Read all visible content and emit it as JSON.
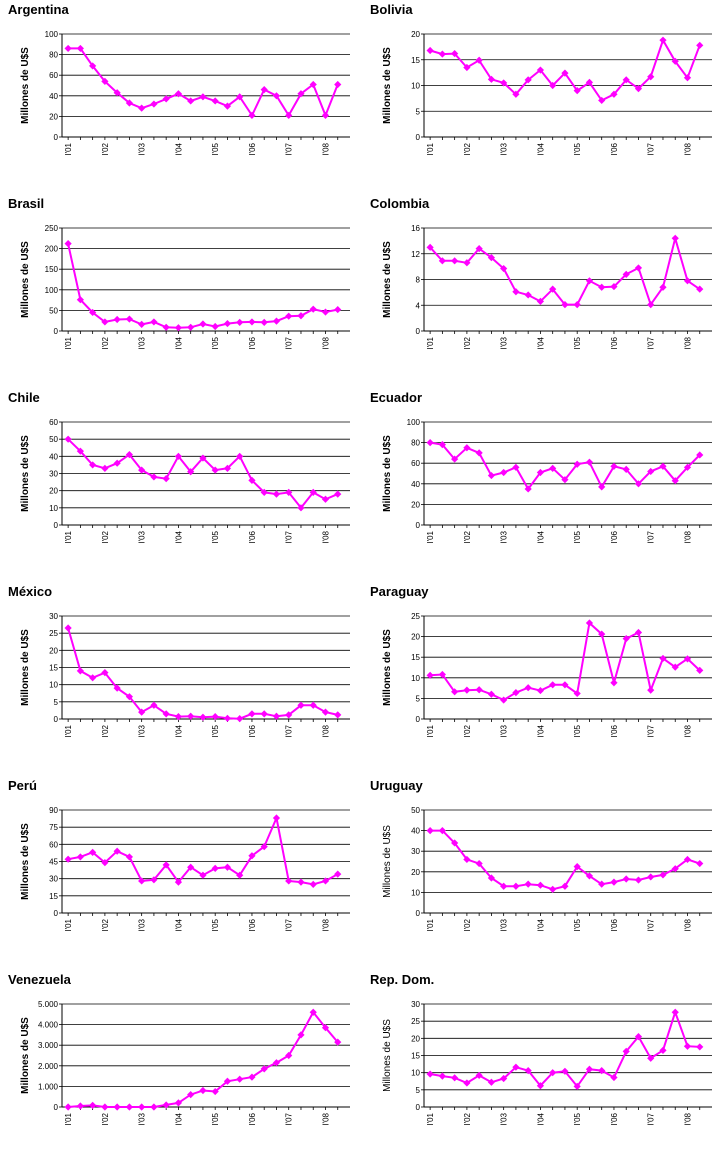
{
  "chart_data": [
    {
      "type": "line",
      "title": "Argentina",
      "ylabel": "Millones de U$S",
      "ylim": [
        0,
        100
      ],
      "yticks": [
        "0",
        "20",
        "40",
        "60",
        "80",
        "100"
      ],
      "xticks": [
        "I'01",
        "I'02",
        "I'03",
        "I'04",
        "I'05",
        "I'06",
        "I'07",
        "I'08"
      ],
      "color": "#ff00ff",
      "values": [
        86,
        86,
        69,
        54,
        43,
        33,
        28,
        32,
        37,
        42,
        35,
        39,
        35,
        30,
        39,
        21,
        46,
        40,
        21,
        42,
        51,
        21,
        51
      ]
    },
    {
      "type": "line",
      "title": "Bolivia",
      "ylabel": "Millones de U$S",
      "ylim": [
        0,
        20
      ],
      "yticks": [
        "0",
        "5",
        "10",
        "15",
        "20"
      ],
      "xticks": [
        "I'01",
        "I'02",
        "I'03",
        "I'04",
        "I'05",
        "I'06",
        "I'07",
        "I'08"
      ],
      "color": "#ff00ff",
      "values": [
        16.8,
        16.1,
        16.2,
        13.5,
        14.9,
        11.2,
        10.5,
        8.3,
        11.1,
        13,
        10,
        12.4,
        9,
        10.6,
        7.1,
        8.3,
        11.1,
        9.4,
        11.7,
        18.8,
        14.7,
        11.5,
        17.8
      ]
    },
    {
      "type": "line",
      "title": "Brasil",
      "ylabel": "Millones de U$S",
      "ylim": [
        0,
        250
      ],
      "yticks": [
        "0",
        "50",
        "100",
        "150",
        "200",
        "250"
      ],
      "xticks": [
        "I'01",
        "I'02",
        "I'03",
        "I'04",
        "I'05",
        "I'06",
        "I'07",
        "I'08"
      ],
      "color": "#ff00ff",
      "values": [
        212,
        76,
        45,
        22,
        28,
        29,
        16,
        22,
        9,
        8,
        9,
        17,
        11,
        18,
        21,
        22,
        21,
        24,
        36,
        37,
        53,
        46,
        52
      ]
    },
    {
      "type": "line",
      "title": "Colombia",
      "ylabel": "Millones de U$S",
      "ylim": [
        0,
        16
      ],
      "yticks": [
        "0",
        "4",
        "8",
        "12",
        "16"
      ],
      "xticks": [
        "I'01",
        "I'02",
        "I'03",
        "I'04",
        "I'05",
        "I'06",
        "I'07",
        "I'08"
      ],
      "color": "#ff00ff",
      "values": [
        13,
        10.9,
        10.9,
        10.6,
        12.8,
        11.4,
        9.7,
        6.1,
        5.6,
        4.6,
        6.5,
        4.1,
        4.1,
        7.8,
        6.8,
        6.9,
        8.8,
        9.8,
        4.1,
        6.8,
        14.4,
        7.8,
        6.5
      ]
    },
    {
      "type": "line",
      "title": "Chile",
      "ylabel": "Millones de U$S",
      "ylim": [
        0,
        60
      ],
      "yticks": [
        "0",
        "10",
        "20",
        "30",
        "40",
        "50",
        "60"
      ],
      "xticks": [
        "I'01",
        "I'02",
        "I'03",
        "I'04",
        "I'05",
        "I'06",
        "I'07",
        "I'08"
      ],
      "color": "#ff00ff",
      "values": [
        50,
        43,
        35,
        33,
        36,
        41,
        32,
        28,
        27,
        40,
        31,
        39,
        32,
        33,
        40,
        26,
        19,
        18,
        19,
        10,
        19,
        15,
        18
      ]
    },
    {
      "type": "line",
      "title": "Ecuador",
      "ylabel": "Millones de U$S",
      "ylim": [
        0,
        100
      ],
      "yticks": [
        "0",
        "20",
        "40",
        "60",
        "80",
        "100"
      ],
      "xticks": [
        "I'01",
        "I'02",
        "I'03",
        "I'04",
        "I'05",
        "I'06",
        "I'07",
        "I'08"
      ],
      "color": "#ff00ff",
      "values": [
        80,
        78,
        64,
        75,
        70,
        48,
        51,
        56,
        35,
        51,
        55,
        44,
        59,
        61,
        37,
        57,
        54,
        40,
        52,
        57,
        43,
        56,
        68
      ]
    },
    {
      "type": "line",
      "title": "México",
      "ylabel": "Millones de U$S",
      "ylim": [
        0,
        30
      ],
      "yticks": [
        "0",
        "5",
        "10",
        "15",
        "20",
        "25",
        "30"
      ],
      "xticks": [
        "I'01",
        "I'02",
        "I'03",
        "I'04",
        "I'05",
        "I'06",
        "I'07",
        "I'08"
      ],
      "color": "#ff00ff",
      "values": [
        26.5,
        14,
        12,
        13.5,
        9,
        6.5,
        2,
        4,
        1.5,
        0.7,
        0.8,
        0.5,
        0.7,
        0.2,
        0.1,
        1.5,
        1.5,
        0.8,
        1.2,
        4,
        4,
        2,
        1.2
      ]
    },
    {
      "type": "line",
      "title": "Paraguay",
      "ylabel": "Millones de U$S",
      "ylim": [
        0,
        25
      ],
      "yticks": [
        "0",
        "5",
        "10",
        "15",
        "20",
        "25"
      ],
      "xticks": [
        "I'01",
        "I'02",
        "I'03",
        "I'04",
        "I'05",
        "I'06",
        "I'07",
        "I'08"
      ],
      "color": "#ff00ff",
      "values": [
        10.6,
        10.8,
        6.6,
        7,
        7.1,
        6,
        4.6,
        6.4,
        7.6,
        6.9,
        8.3,
        8.3,
        6.2,
        23.3,
        20.6,
        8.8,
        19.5,
        21,
        7,
        14.7,
        12.6,
        14.6,
        11.8
      ]
    },
    {
      "type": "line",
      "title": "Perú",
      "ylabel": "Millones de U$S",
      "ylim": [
        0,
        90
      ],
      "yticks": [
        "0",
        "15",
        "30",
        "45",
        "60",
        "75",
        "90"
      ],
      "xticks": [
        "I'01",
        "I'02",
        "I'03",
        "I'04",
        "I'05",
        "I'06",
        "I'07",
        "I'08"
      ],
      "color": "#ff00ff",
      "values": [
        47,
        49,
        53,
        44,
        54,
        49,
        28,
        29,
        42,
        27,
        40,
        33,
        39,
        40,
        33,
        50,
        58,
        83,
        28,
        27,
        25,
        28,
        34
      ]
    },
    {
      "type": "line",
      "title": "Uruguay",
      "ylabel": "Millones de U$S",
      "ylim": [
        0,
        50
      ],
      "yticks": [
        "0",
        "10",
        "20",
        "30",
        "40",
        "50"
      ],
      "xticks": [
        "I'01",
        "I'02",
        "I'03",
        "I'04",
        "I'05",
        "I'06",
        "I'07",
        "I'08"
      ],
      "color": "#ff00ff",
      "values": [
        40,
        40,
        34,
        26,
        24,
        17,
        13,
        13,
        14,
        13.5,
        11.5,
        13,
        22.5,
        18,
        14,
        15,
        16.5,
        16,
        17.5,
        18.5,
        21.5,
        26,
        24
      ]
    },
    {
      "type": "line",
      "title": "Venezuela",
      "ylabel": "Millones de U$S",
      "ylim": [
        0,
        5000
      ],
      "yticks": [
        "0",
        "1.000",
        "2.000",
        "3.000",
        "4.000",
        "5.000"
      ],
      "xticks": [
        "I'01",
        "I'02",
        "I'03",
        "I'04",
        "I'05",
        "I'06",
        "I'07",
        "I'08"
      ],
      "color": "#ff00ff",
      "values": [
        0,
        50,
        80,
        0,
        0,
        0,
        0,
        0,
        100,
        200,
        600,
        800,
        750,
        1250,
        1350,
        1450,
        1850,
        2150,
        2500,
        3500,
        4600,
        3850,
        3150
      ]
    },
    {
      "type": "line",
      "title": "Rep. Dom.",
      "ylabel": "Millones de U$S",
      "ylim": [
        0,
        30
      ],
      "yticks": [
        "0",
        "5",
        "10",
        "15",
        "20",
        "25",
        "30"
      ],
      "xticks": [
        "I'01",
        "I'02",
        "I'03",
        "I'04",
        "I'05",
        "I'06",
        "I'07",
        "I'08"
      ],
      "color": "#ff00ff",
      "values": [
        9.6,
        9,
        8.5,
        7,
        9.2,
        7.2,
        8.3,
        11.6,
        10.6,
        6.2,
        10,
        10.4,
        6,
        11,
        10.6,
        8.6,
        16.2,
        20.5,
        14.2,
        16.5,
        27.6,
        17.7,
        17.5
      ]
    }
  ]
}
